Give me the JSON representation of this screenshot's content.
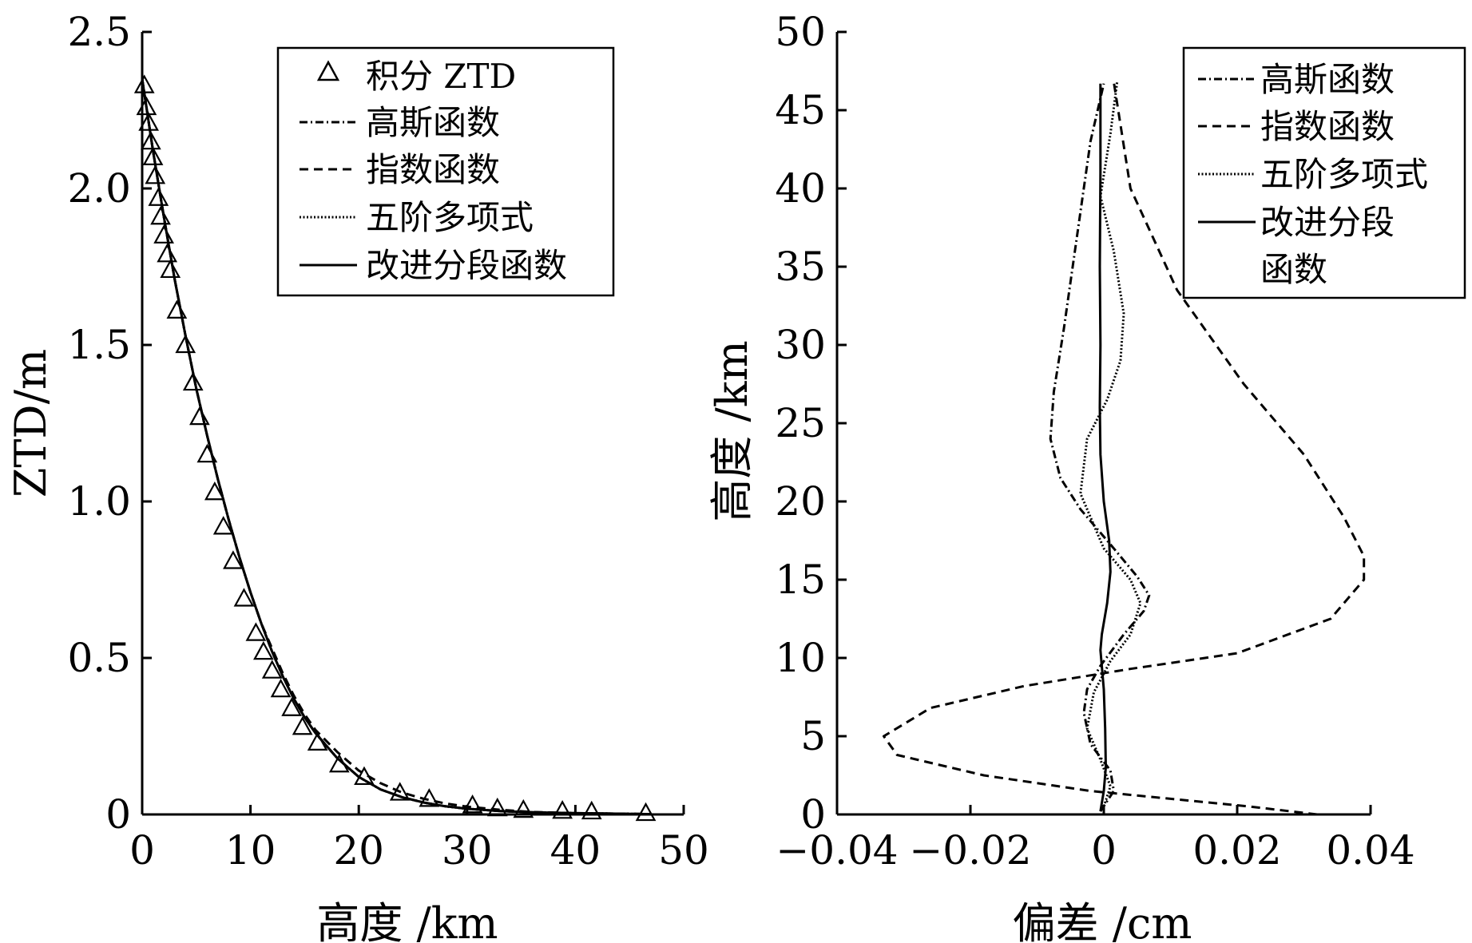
{
  "chart_data": [
    {
      "type": "line",
      "xlabel": "高度 /km",
      "ylabel": "ZTD/m",
      "xlim": [
        0,
        50
      ],
      "ylim": [
        0,
        2.5
      ],
      "xticks": [
        0,
        10,
        20,
        30,
        40,
        50
      ],
      "xtick_labels": [
        "0",
        "10",
        "20",
        "30",
        "40",
        "50"
      ],
      "yticks": [
        0,
        0.5,
        1.0,
        1.5,
        2.0,
        2.5
      ],
      "ytick_labels": [
        "0",
        "0.5",
        "1.0",
        "1.5",
        "2.0",
        "2.5"
      ],
      "legend_position": "top-right",
      "series": [
        {
          "name": "积分 ZTD",
          "style": "triangle-markers",
          "x": [
            0.2,
            0.4,
            0.6,
            0.8,
            1.0,
            1.2,
            1.5,
            1.7,
            2.0,
            2.3,
            2.6,
            3.2,
            4.0,
            4.7,
            5.3,
            6.0,
            6.7,
            7.5,
            8.4,
            9.4,
            10.5,
            11.2,
            12.0,
            12.8,
            13.8,
            14.8,
            16.2,
            18.2,
            20.5,
            23.8,
            26.5,
            30.5,
            32.8,
            35.2,
            38.8,
            41.5,
            46.5
          ],
          "y": [
            2.33,
            2.26,
            2.21,
            2.15,
            2.1,
            2.04,
            1.97,
            1.91,
            1.85,
            1.79,
            1.74,
            1.61,
            1.5,
            1.38,
            1.27,
            1.15,
            1.03,
            0.92,
            0.81,
            0.69,
            0.58,
            0.52,
            0.46,
            0.4,
            0.34,
            0.28,
            0.23,
            0.16,
            0.12,
            0.07,
            0.05,
            0.03,
            0.02,
            0.015,
            0.012,
            0.01,
            0.005
          ]
        },
        {
          "name": "高斯函数",
          "style": "dash-dot",
          "x": [
            0,
            1,
            2,
            3,
            4,
            5,
            6,
            7,
            8,
            9,
            10,
            11,
            12,
            13,
            14,
            15,
            16,
            18,
            20,
            22,
            24,
            26,
            28,
            30,
            33,
            36,
            40,
            45,
            47
          ],
          "y": [
            2.35,
            2.12,
            1.91,
            1.71,
            1.53,
            1.36,
            1.21,
            1.07,
            0.94,
            0.82,
            0.71,
            0.61,
            0.52,
            0.44,
            0.37,
            0.31,
            0.26,
            0.18,
            0.12,
            0.08,
            0.055,
            0.038,
            0.026,
            0.018,
            0.011,
            0.007,
            0.004,
            0.002,
            0.001
          ]
        },
        {
          "name": "指数函数",
          "style": "dashed",
          "x": [
            0,
            1,
            2,
            3,
            4,
            5,
            6,
            7,
            8,
            9,
            10,
            11,
            12,
            13,
            14,
            15,
            16,
            18,
            20,
            22,
            24,
            26,
            28,
            30,
            33,
            36,
            40,
            45,
            47
          ],
          "y": [
            2.35,
            2.12,
            1.91,
            1.71,
            1.53,
            1.36,
            1.21,
            1.07,
            0.94,
            0.82,
            0.71,
            0.61,
            0.53,
            0.45,
            0.38,
            0.32,
            0.27,
            0.2,
            0.14,
            0.1,
            0.07,
            0.05,
            0.035,
            0.025,
            0.015,
            0.008,
            0.004,
            0.002,
            0.001
          ]
        },
        {
          "name": "五阶多项式",
          "style": "dotted",
          "x": [
            0,
            1,
            2,
            3,
            4,
            5,
            6,
            7,
            8,
            9,
            10,
            11,
            12,
            13,
            14,
            15,
            16,
            18,
            20,
            22,
            24,
            26,
            28,
            30,
            33,
            36,
            40,
            45,
            47
          ],
          "y": [
            2.35,
            2.12,
            1.91,
            1.71,
            1.53,
            1.36,
            1.21,
            1.07,
            0.94,
            0.82,
            0.71,
            0.61,
            0.52,
            0.44,
            0.37,
            0.31,
            0.26,
            0.18,
            0.12,
            0.08,
            0.055,
            0.038,
            0.026,
            0.018,
            0.011,
            0.007,
            0.004,
            0.002,
            0.001
          ]
        },
        {
          "name": "改进分段函数",
          "style": "solid",
          "x": [
            0,
            1,
            2,
            3,
            4,
            5,
            6,
            7,
            8,
            9,
            10,
            11,
            12,
            13,
            14,
            15,
            16,
            18,
            20,
            22,
            24,
            26,
            28,
            30,
            33,
            36,
            40,
            45,
            47
          ],
          "y": [
            2.35,
            2.12,
            1.91,
            1.71,
            1.53,
            1.36,
            1.21,
            1.07,
            0.94,
            0.82,
            0.71,
            0.61,
            0.52,
            0.44,
            0.37,
            0.31,
            0.26,
            0.18,
            0.12,
            0.08,
            0.055,
            0.038,
            0.026,
            0.018,
            0.011,
            0.007,
            0.004,
            0.002,
            0.001
          ]
        }
      ]
    },
    {
      "type": "line",
      "xlabel": "偏差 /cm",
      "ylabel": "高度 /km",
      "xlim": [
        -0.04,
        0.04
      ],
      "ylim": [
        0,
        50
      ],
      "xticks": [
        -0.04,
        -0.02,
        0,
        0.02,
        0.04
      ],
      "xtick_labels": [
        "−0.04",
        "−0.02",
        "0",
        "0.02",
        "0.04"
      ],
      "yticks": [
        0,
        5,
        10,
        15,
        20,
        25,
        30,
        35,
        40,
        45,
        50
      ],
      "ytick_labels": [
        "0",
        "5",
        "10",
        "15",
        "20",
        "25",
        "30",
        "35",
        "40",
        "45",
        "50"
      ],
      "legend_position": "top-right",
      "series": [
        {
          "name": "高斯函数",
          "legend_lines": [
            "高斯函数"
          ],
          "style": "dash-dot",
          "x": [
            -0.0005,
            0.0015,
            0.001,
            -0.002,
            -0.003,
            -0.0025,
            -0.0005,
            0.003,
            0.006,
            0.0068,
            0.005,
            0.0015,
            -0.0035,
            -0.0065,
            -0.008,
            -0.0075,
            -0.006,
            -0.004,
            -0.002,
            0.0
          ],
          "y": [
            0.2,
            1.5,
            2.8,
            4.5,
            6.5,
            8.0,
            9.5,
            11.5,
            13.0,
            14.0,
            15.2,
            17.0,
            19.5,
            21.5,
            24.0,
            27.0,
            31.0,
            37.0,
            43.0,
            46.7
          ]
        },
        {
          "name": "指数函数",
          "legend_lines": [
            "指数函数"
          ],
          "style": "dashed",
          "x": [
            0.032,
            0.022,
            0.01,
            -0.002,
            -0.018,
            -0.031,
            -0.033,
            -0.026,
            -0.012,
            0.004,
            0.02,
            0.034,
            0.039,
            0.039,
            0.036,
            0.03,
            0.021,
            0.011,
            0.004,
            0.0015
          ],
          "y": [
            0.0,
            0.5,
            1.0,
            1.5,
            2.5,
            3.8,
            5.0,
            6.8,
            8.2,
            9.3,
            10.3,
            12.5,
            15.0,
            16.5,
            19.0,
            23.0,
            27.5,
            33.5,
            40.0,
            46.8
          ]
        },
        {
          "name": "五阶多项式",
          "legend_lines": [
            "五阶多项式"
          ],
          "style": "dotted",
          "x": [
            0.0,
            0.001,
            -0.0005,
            -0.0025,
            -0.0015,
            0.001,
            0.004,
            0.0055,
            0.004,
            0.0,
            -0.0035,
            -0.0025,
            0.0005,
            0.0025,
            0.003,
            0.0015,
            -0.0005,
            0.001,
            0.002
          ],
          "y": [
            0.5,
            1.8,
            3.5,
            5.5,
            7.8,
            9.8,
            11.5,
            13.5,
            15.0,
            17.0,
            20.5,
            24.0,
            26.5,
            29.0,
            32.0,
            36.0,
            39.5,
            43.5,
            46.8
          ]
        },
        {
          "name": "改进分段函数",
          "legend_lines": [
            "改进分段",
            "函数"
          ],
          "style": "solid",
          "x": [
            -0.0005,
            0.0,
            0.0003,
            0.0002,
            0.0,
            -0.0005,
            -0.0003,
            0.0005,
            0.001,
            0.0008,
            0.0,
            -0.0005,
            -0.0006,
            -0.0005,
            -0.0006,
            -0.0005,
            -0.0005
          ],
          "y": [
            0.2,
            1.5,
            3.0,
            5.5,
            8.0,
            10.5,
            11.5,
            13.5,
            15.5,
            17.5,
            20.0,
            23.0,
            26.0,
            30.0,
            35.0,
            41.0,
            46.7
          ]
        }
      ]
    }
  ]
}
